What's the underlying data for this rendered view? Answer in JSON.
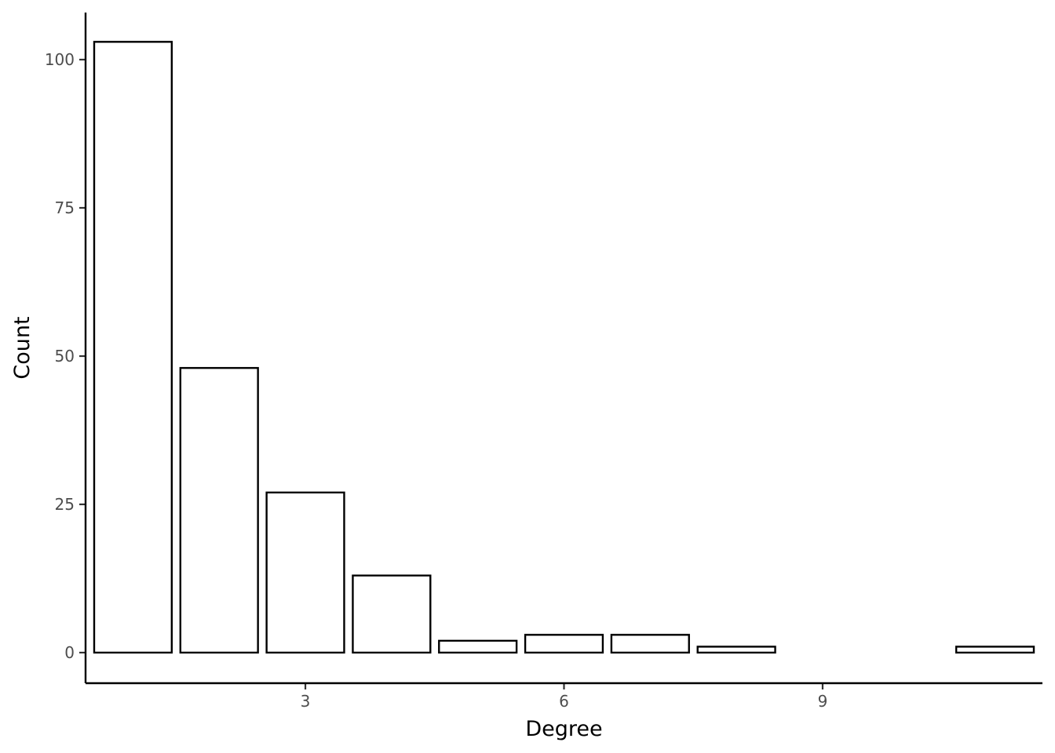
{
  "chart_data": {
    "type": "bar",
    "x": [
      1,
      2,
      3,
      4,
      5,
      6,
      7,
      8,
      11
    ],
    "values": [
      103,
      48,
      27,
      13,
      2,
      3,
      3,
      1,
      1
    ],
    "xlabel": "Degree",
    "ylabel": "Count",
    "xlim": [
      0.45,
      11.55
    ],
    "ylim": [
      0,
      108
    ],
    "xticks": [
      3,
      6,
      9
    ],
    "yticks": [
      0,
      25,
      50,
      75,
      100
    ],
    "grid": false,
    "legend": "none",
    "colors": {
      "bar_fill": "#ffffff",
      "bar_stroke": "#000000"
    }
  }
}
